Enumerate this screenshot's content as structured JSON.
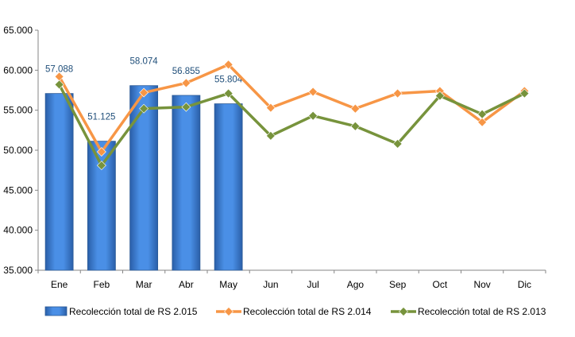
{
  "chart_data": {
    "type": "bar",
    "categories": [
      "Ene",
      "Feb",
      "Mar",
      "Abr",
      "May",
      "Jun",
      "Jul",
      "Ago",
      "Sep",
      "Oct",
      "Nov",
      "Dic"
    ],
    "ylim": [
      35000,
      65000
    ],
    "yticks": [
      35000,
      40000,
      45000,
      50000,
      55000,
      60000,
      65000
    ],
    "ytick_labels": [
      "35.000",
      "40.000",
      "45.000",
      "50.000",
      "55.000",
      "60.000",
      "65.000"
    ],
    "grid": false,
    "legend_position": "bottom",
    "series": [
      {
        "name": "Recolección total de RS 2.015",
        "type": "bar",
        "color": "#3b7dd8",
        "values": [
          57088,
          51125,
          58074,
          56855,
          55804,
          null,
          null,
          null,
          null,
          null,
          null,
          null
        ],
        "data_labels": [
          "57.088",
          "51.125",
          "58.074",
          "56.855",
          "55.804"
        ]
      },
      {
        "name": "Recolección total de RS 2.014",
        "type": "line",
        "color": "#f79646",
        "values": [
          59200,
          49800,
          57200,
          58400,
          60700,
          55300,
          57300,
          55200,
          57100,
          57400,
          53500,
          57400
        ]
      },
      {
        "name": "Recolección total de RS 2.013",
        "type": "line",
        "color": "#77933c",
        "values": [
          58200,
          48100,
          55200,
          55400,
          57100,
          51800,
          54300,
          53000,
          50800,
          56800,
          54500,
          57100
        ]
      }
    ]
  }
}
